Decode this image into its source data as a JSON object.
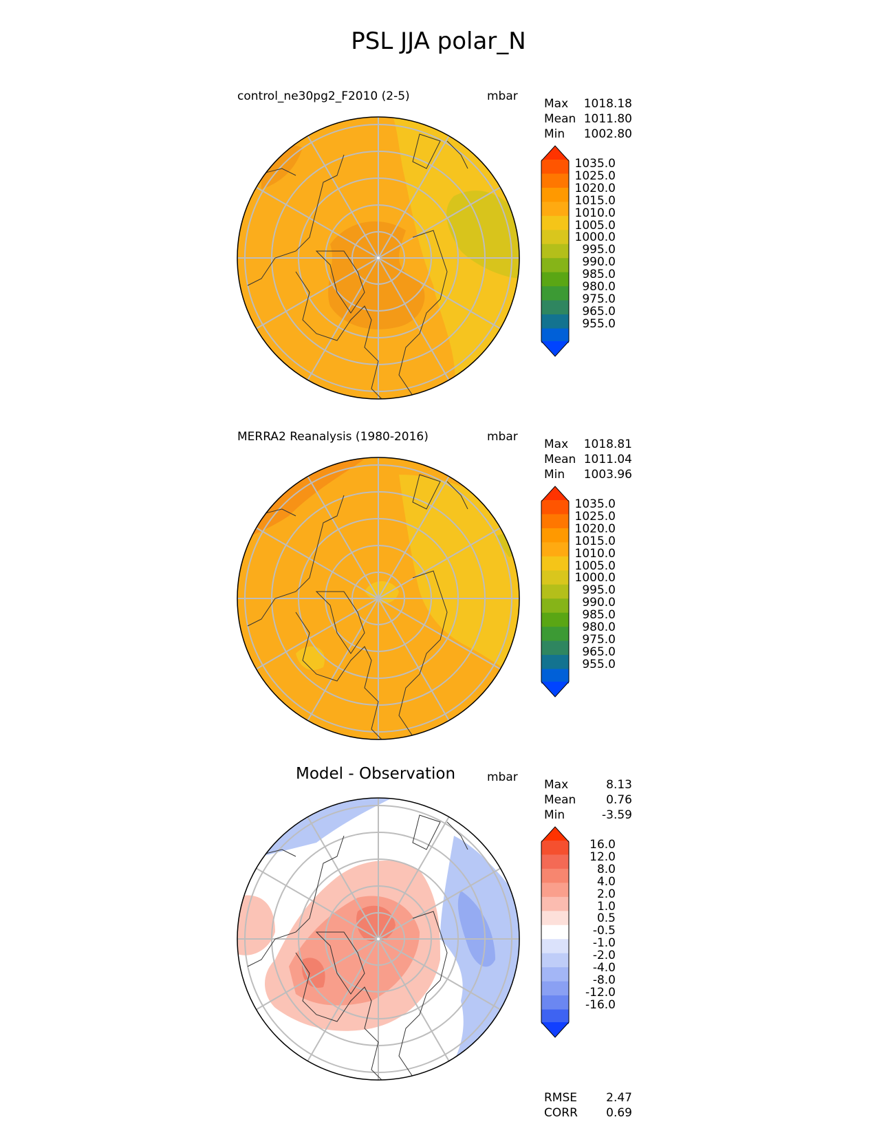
{
  "figure": {
    "title": "PSL JJA polar_N",
    "units": "mbar"
  },
  "panels": [
    {
      "id": "test",
      "title": "control_ne30pg2_F2010 (2-5)",
      "units": "mbar",
      "stats": {
        "max_label": "Max",
        "max": "1018.18",
        "mean_label": "Mean",
        "mean": "1011.80",
        "min_label": "Min",
        "min": "1002.80"
      },
      "colorbar": {
        "labels": [
          "1035.0",
          "1025.0",
          "1020.0",
          "1015.0",
          "1010.0",
          "1005.0",
          "1000.0",
          "995.0",
          "990.0",
          "985.0",
          "980.0",
          "975.0",
          "965.0",
          "955.0"
        ],
        "colors": [
          "#ff3300",
          "#ff5500",
          "#ff7700",
          "#ff9900",
          "#ffaa11",
          "#f5c518",
          "#d9c61d",
          "#b4bf1a",
          "#86b418",
          "#5aa614",
          "#3c9a34",
          "#2f8660",
          "#137390",
          "#0060d8",
          "#0044ff"
        ]
      }
    },
    {
      "id": "ref",
      "title": "MERRA2 Reanalysis (1980-2016)",
      "units": "mbar",
      "stats": {
        "max_label": "Max",
        "max": "1018.81",
        "mean_label": "Mean",
        "mean": "1011.04",
        "min_label": "Min",
        "min": "1003.96"
      },
      "colorbar": {
        "labels": [
          "1035.0",
          "1025.0",
          "1020.0",
          "1015.0",
          "1010.0",
          "1005.0",
          "1000.0",
          "995.0",
          "990.0",
          "985.0",
          "980.0",
          "975.0",
          "965.0",
          "955.0"
        ],
        "colors": [
          "#ff3300",
          "#ff5500",
          "#ff7700",
          "#ff9900",
          "#ffaa11",
          "#f5c518",
          "#d9c61d",
          "#b4bf1a",
          "#86b418",
          "#5aa614",
          "#3c9a34",
          "#2f8660",
          "#137390",
          "#0060d8",
          "#0044ff"
        ]
      }
    },
    {
      "id": "diff",
      "title": "Model - Observation",
      "units": "mbar",
      "stats": {
        "max_label": "Max",
        "max": "8.13",
        "mean_label": "Mean",
        "mean": "0.76",
        "min_label": "Min",
        "min": "-3.59"
      },
      "colorbar": {
        "labels": [
          "16.0",
          "12.0",
          "8.0",
          "4.0",
          "2.0",
          "1.0",
          "0.5",
          "-0.5",
          "-1.0",
          "-2.0",
          "-4.0",
          "-8.0",
          "-12.0",
          "-16.0"
        ],
        "colors": [
          "#ff3300",
          "#f5502f",
          "#f46a55",
          "#f7866f",
          "#fa9f8c",
          "#fbbcb0",
          "#fde0da",
          "#ffffff",
          "#dbe2fb",
          "#bfcdf8",
          "#a3b6f6",
          "#8aa0f3",
          "#6b87f1",
          "#3e63f2",
          "#1140ff"
        ]
      },
      "extra": {
        "rmse_label": "RMSE",
        "rmse": "2.47",
        "corr_label": "CORR",
        "corr": "0.69"
      }
    }
  ],
  "map_colors": {
    "test": {
      "base": "#fbad1c",
      "band1": "#f49a17",
      "yellow": "#f6c41f",
      "olive": "#d8c41c"
    },
    "ref": {
      "base": "#fbac1b",
      "band1": "#f79216",
      "yellow": "#f6c41f",
      "olive": "#d8c41c"
    },
    "diff": {
      "base": "#ffffff",
      "red1": "#fbc3b6",
      "red2": "#f89e8b",
      "red3": "#f2806c",
      "blue1": "#d8e0fb",
      "blue2": "#b7c8f6",
      "blue3": "#95abf2"
    }
  }
}
